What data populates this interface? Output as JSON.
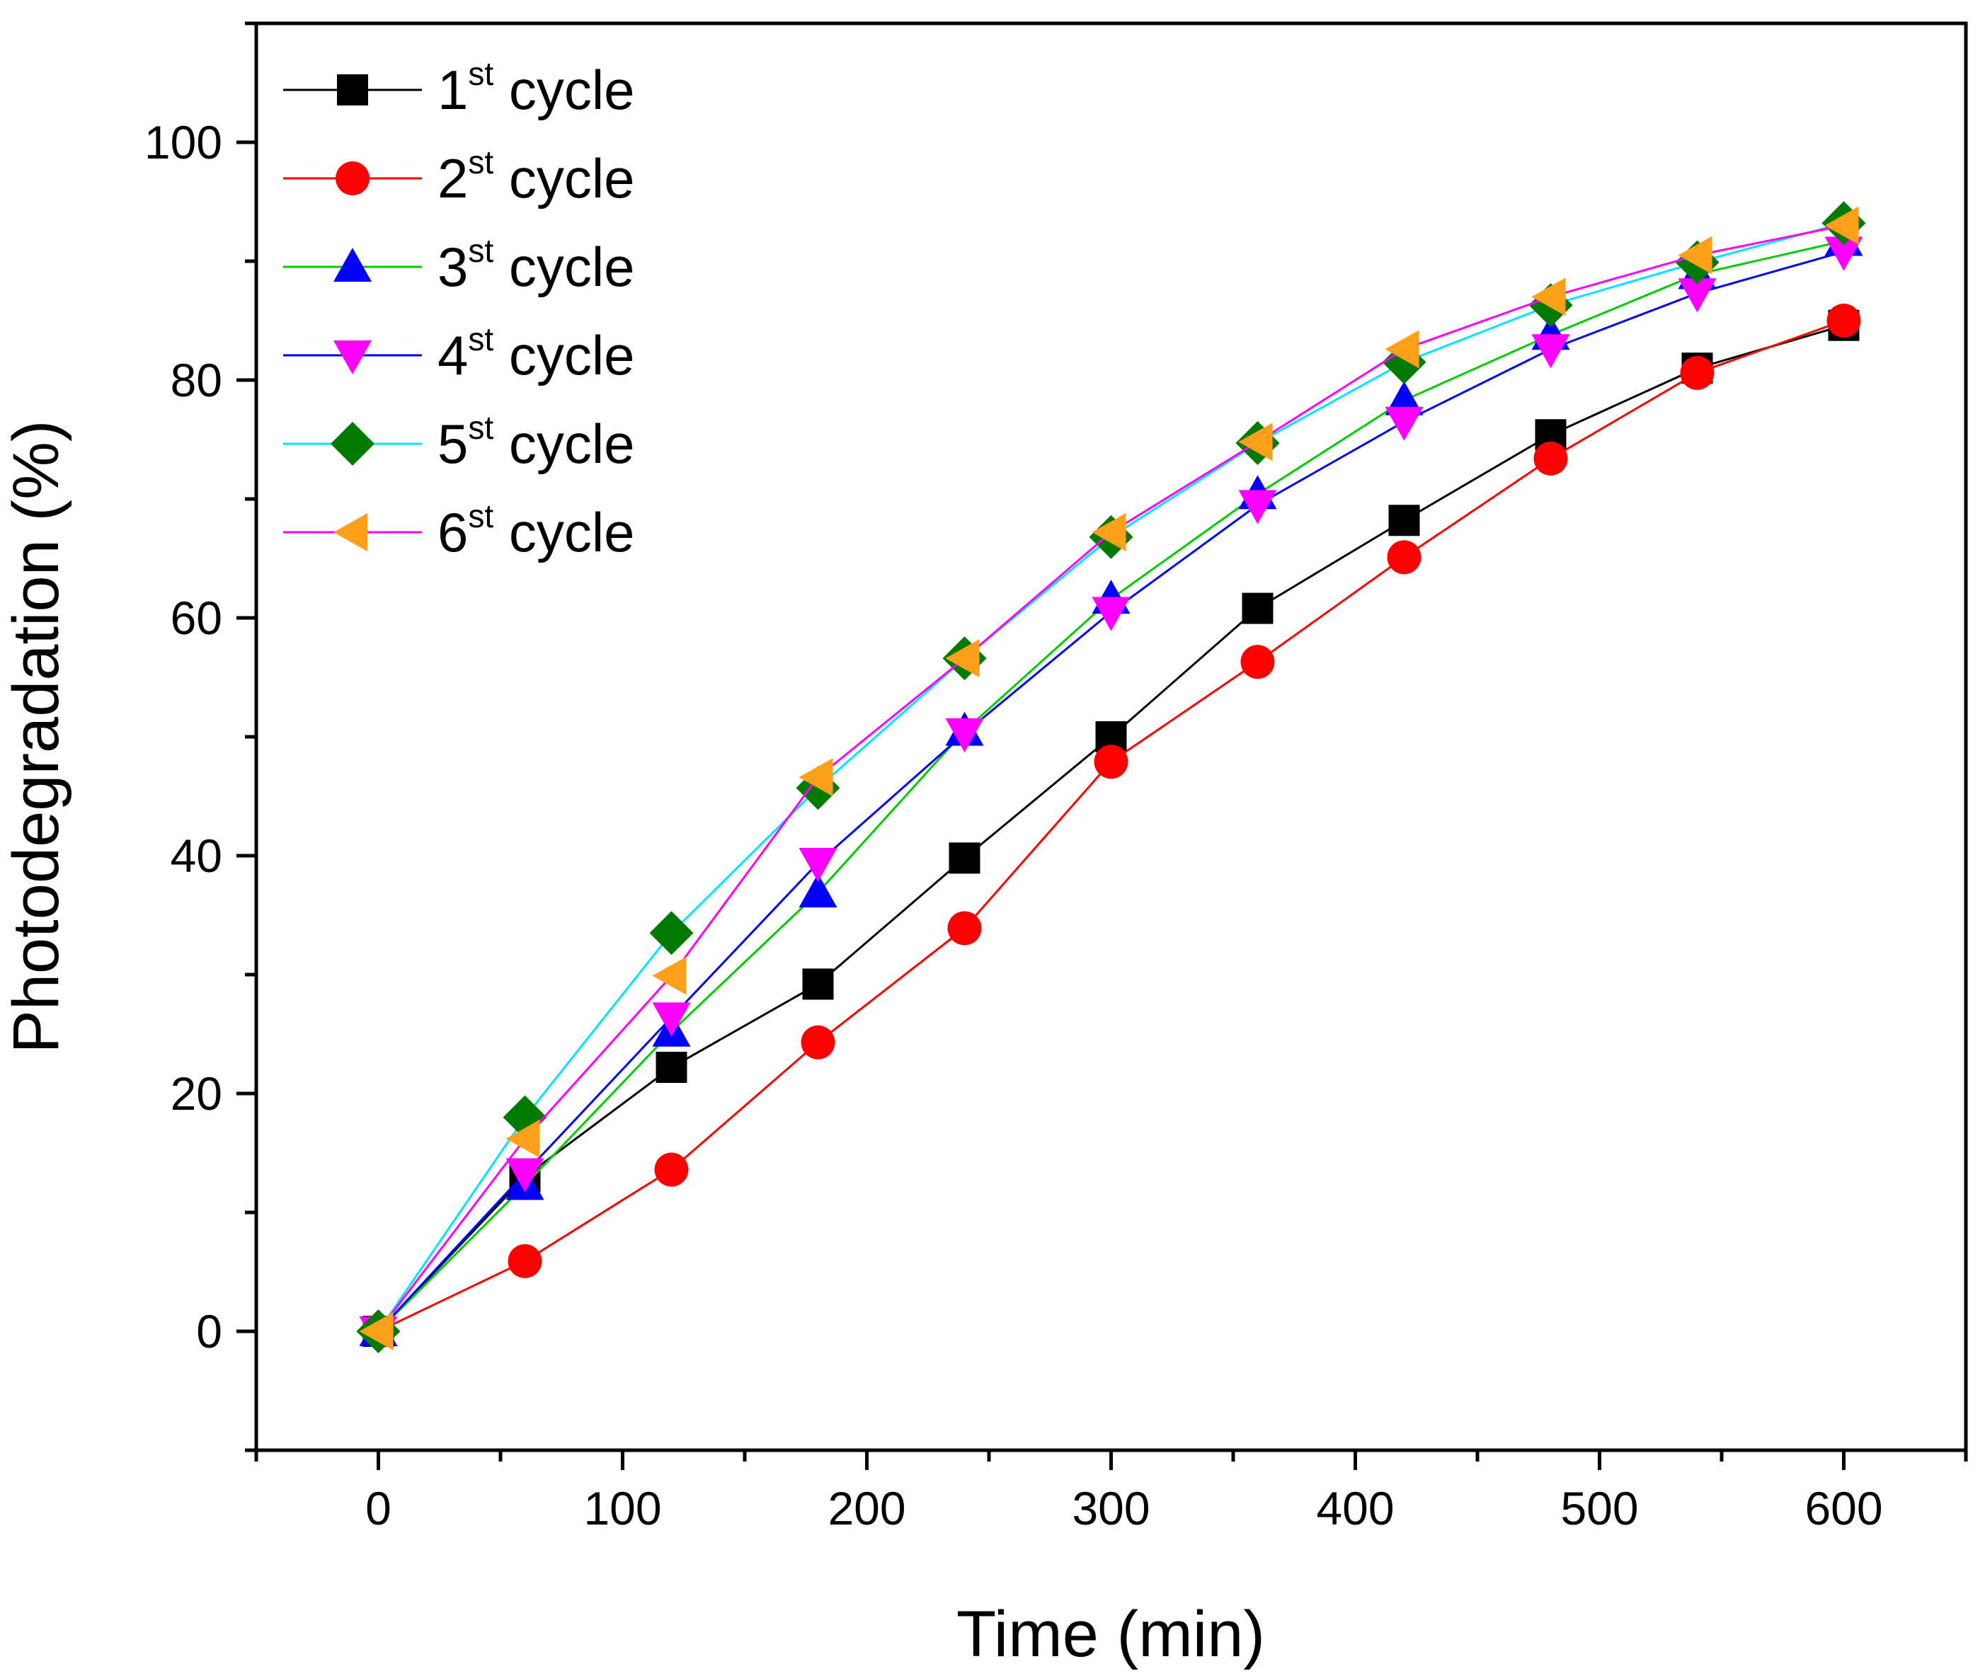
{
  "chart_data": {
    "type": "line",
    "title": "",
    "xlabel": "Time (min)",
    "ylabel": "Photodegradation (%)",
    "xlim": [
      -50,
      650
    ],
    "ylim": [
      -10,
      110
    ],
    "x_ticks": [
      0,
      100,
      200,
      300,
      400,
      500,
      600
    ],
    "y_ticks": [
      0,
      20,
      40,
      60,
      80,
      100
    ],
    "x_tick_labels": [
      "0",
      "100",
      "200",
      "300",
      "400",
      "500",
      "600"
    ],
    "y_tick_labels": [
      "0",
      "20",
      "40",
      "60",
      "80",
      "100"
    ],
    "x": [
      0,
      60,
      120,
      180,
      240,
      300,
      360,
      420,
      480,
      540,
      600
    ],
    "grid": false,
    "legend_position": "top-left",
    "series": [
      {
        "name": "1",
        "name_sup": "st",
        "name_suffix": " cycle",
        "line_color": "#000000",
        "marker_color": "#000000",
        "marker": "square",
        "values": [
          0,
          13,
          22.2,
          29.2,
          39.8,
          50,
          60.8,
          68.2,
          75.4,
          81,
          84.6
        ]
      },
      {
        "name": "2",
        "name_sup": "st",
        "name_suffix": " cycle",
        "line_color": "#ff0000",
        "marker_color": "#ff0000",
        "marker": "circle",
        "values": [
          0,
          5.9,
          13.6,
          24.3,
          33.9,
          47.9,
          56.3,
          65.1,
          73.4,
          80.6,
          85
        ]
      },
      {
        "name": "3",
        "name_sup": "st",
        "name_suffix": " cycle",
        "line_color": "#00cc00",
        "marker_color": "#0000ff",
        "marker": "triangle-up",
        "values": [
          0,
          12.3,
          25.2,
          36.9,
          50.5,
          61.6,
          70.4,
          78.3,
          83.8,
          88.9,
          91.7
        ]
      },
      {
        "name": "4",
        "name_sup": "st",
        "name_suffix": " cycle",
        "line_color": "#0000ff",
        "marker_color": "#ff00ff",
        "marker": "triangle-down",
        "values": [
          0,
          13.3,
          26.4,
          39.4,
          50.3,
          60.5,
          69.5,
          76.5,
          82.6,
          87.3,
          90.8
        ]
      },
      {
        "name": "5",
        "name_sup": "st",
        "name_suffix": " cycle",
        "line_color": "#00e5ff",
        "marker_color": "#007a00",
        "marker": "diamond",
        "values": [
          0,
          18,
          33.5,
          45.7,
          56.6,
          66.8,
          74.7,
          81.5,
          86.3,
          89.9,
          93.2
        ]
      },
      {
        "name": "6",
        "name_sup": "st",
        "name_suffix": " cycle",
        "line_color": "#ff00ff",
        "marker_color": "#ff9f1a",
        "marker": "triangle-left",
        "values": [
          0,
          16.2,
          29.9,
          46.6,
          56.6,
          67.2,
          74.8,
          82.6,
          87,
          90.5,
          93
        ]
      }
    ]
  }
}
